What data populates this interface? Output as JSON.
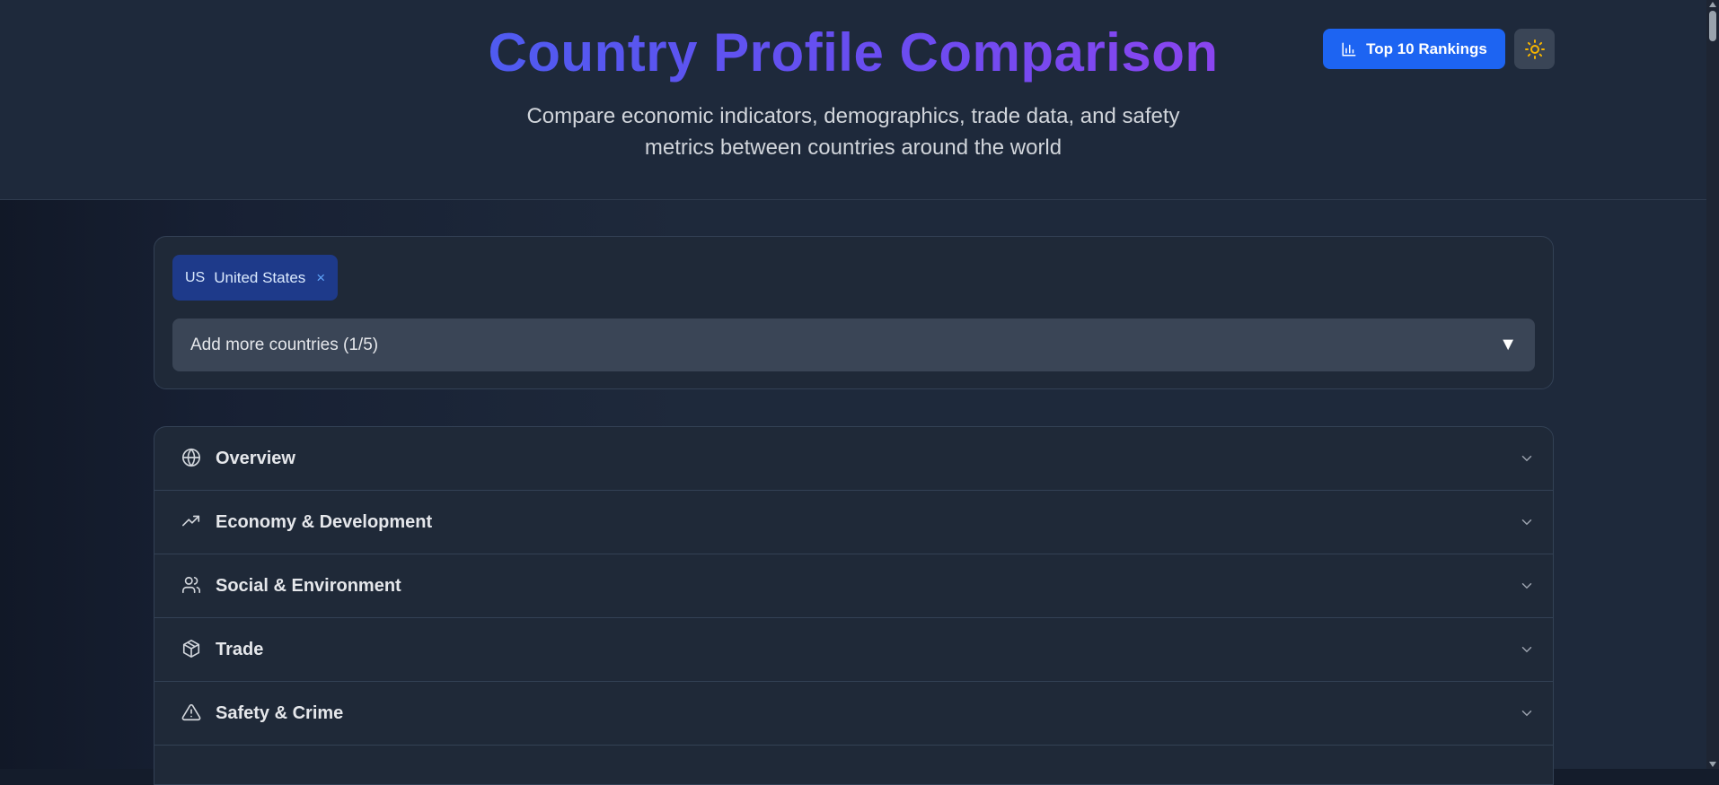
{
  "header": {
    "title": "Country Profile Comparison",
    "subtitle": "Compare economic indicators, demographics, trade data, and safety metrics between countries around the world",
    "rankings_button": "Top 10 Rankings",
    "theme_icon": "sun-icon"
  },
  "selector": {
    "selected": [
      {
        "code": "US",
        "name": "United States",
        "remove": "×"
      }
    ],
    "dropdown_label": "Add more countries (1/5)",
    "dropdown_arrow": "▼"
  },
  "sections": [
    {
      "label": "Overview",
      "icon": "globe-icon"
    },
    {
      "label": "Economy & Development",
      "icon": "trending-up-icon"
    },
    {
      "label": "Social & Environment",
      "icon": "users-icon"
    },
    {
      "label": "Trade",
      "icon": "package-icon"
    },
    {
      "label": "Safety & Crime",
      "icon": "alert-triangle-icon"
    }
  ],
  "colors": {
    "accent": "#1d64f2",
    "title_gradient_start": "#4f5bf0",
    "title_gradient_end": "#8b45f0",
    "background": "#1e293b"
  }
}
